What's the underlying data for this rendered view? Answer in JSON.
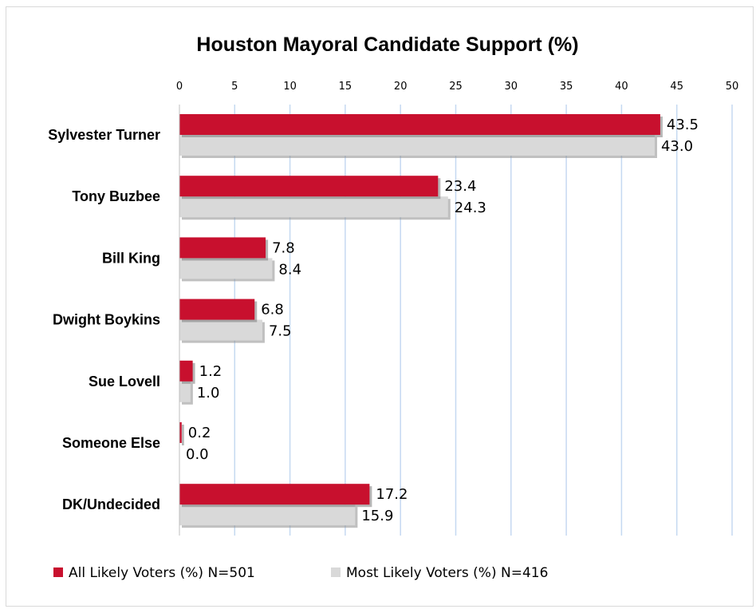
{
  "chart_data": {
    "type": "bar",
    "orientation": "horizontal",
    "title": "Houston Mayoral Candidate Support (%)",
    "categories": [
      "Sylvester Turner",
      "Tony Buzbee",
      "Bill King",
      "Dwight Boykins",
      "Sue Lovell",
      "Someone Else",
      "DK/Undecided"
    ],
    "series": [
      {
        "name": "All Likely Voters (%) N=501",
        "color": "#c8102e",
        "values": [
          43.5,
          23.4,
          7.8,
          6.8,
          1.2,
          0.2,
          17.2
        ],
        "labels": [
          "43.5",
          "23.4",
          "7.8",
          "6.8",
          "1.2",
          "0.2",
          "17.2"
        ]
      },
      {
        "name": "Most Likely Voters (%) N=416",
        "color": "#d9d9d9",
        "values": [
          43.0,
          24.3,
          8.4,
          7.5,
          1.0,
          0.0,
          15.9
        ],
        "labels": [
          "43.0",
          "24.3",
          "8.4",
          "7.5",
          "1.0",
          "0.0",
          "15.9"
        ]
      }
    ],
    "xlim": [
      0,
      50
    ],
    "xticks": [
      "0",
      "5",
      "10",
      "15",
      "20",
      "25",
      "30",
      "35",
      "40",
      "45",
      "50"
    ],
    "xaxis_position": "top",
    "grid": true,
    "gridline_color": "#c5d9f1",
    "legend_position": "bottom-left"
  }
}
